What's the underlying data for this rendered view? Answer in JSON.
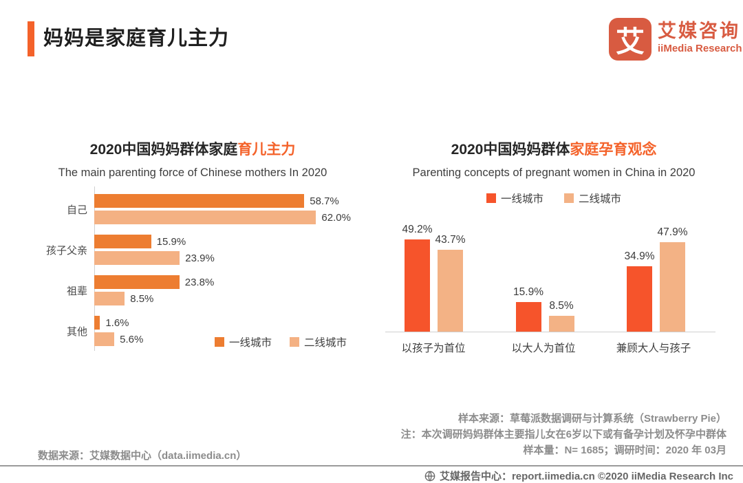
{
  "header": {
    "title": "妈妈是家庭育儿主力",
    "logo": {
      "glyph": "艾",
      "name_cn": "艾媒咨询",
      "name_en": "iiMedia Research"
    }
  },
  "chart_data": [
    {
      "type": "bar",
      "orientation": "horizontal",
      "title": "2020中国妈妈群体家庭育儿主力",
      "title_black": "2020中国妈妈群体家庭",
      "title_highlight": "育儿主力",
      "subtitle": "The main parenting force of Chinese mothers In 2020",
      "categories": [
        "自己",
        "孩子父亲",
        "祖辈",
        "其他"
      ],
      "series": [
        {
          "name": "一线城市",
          "color": "#ED7D31",
          "values": [
            58.7,
            15.9,
            23.8,
            1.6
          ]
        },
        {
          "name": "二线城市",
          "color": "#F4B183",
          "values": [
            62.0,
            23.9,
            8.5,
            5.6
          ]
        }
      ],
      "value_suffix": "%",
      "xlim": [
        0,
        65
      ],
      "grid": false,
      "legend_position": "bottom-right"
    },
    {
      "type": "bar",
      "orientation": "vertical",
      "title": "2020中国妈妈群体家庭孕育观念",
      "title_black": "2020中国妈妈群体",
      "title_highlight": "家庭孕育观念",
      "subtitle": "Parenting concepts of pregnant women in China in 2020",
      "categories": [
        "以孩子为首位",
        "以大人为首位",
        "兼顾大人与孩子"
      ],
      "series": [
        {
          "name": "一线城市",
          "color": "#F6542B",
          "values": [
            49.2,
            15.9,
            34.9
          ]
        },
        {
          "name": "二线城市",
          "color": "#F3B285",
          "values": [
            43.7,
            8.5,
            47.9
          ]
        }
      ],
      "value_suffix": "%",
      "ylim": [
        0,
        55
      ],
      "grid": false,
      "legend_position": "top-center"
    }
  ],
  "footnotes": {
    "left_source": "数据来源：艾媒数据中心（data.iimedia.cn）",
    "right_lines": [
      "样本来源：草莓派数据调研与计算系统（Strawberry  Pie）",
      "注：本次调研妈妈群体主要指儿女在6岁以下或有备孕计划及怀孕中群体",
      "样本量：N= 1685；调研时间：2020  年 03月"
    ]
  },
  "footer": {
    "text": "艾媒报告中心：report.iimedia.cn  ©2020  iiMedia Research Inc"
  },
  "colors": {
    "accent": "#F4622A",
    "logo": "#D85B41",
    "axis_line": "#CFCFCF",
    "footnote_gray": "#8C8C8C",
    "footer_gray": "#666666"
  }
}
